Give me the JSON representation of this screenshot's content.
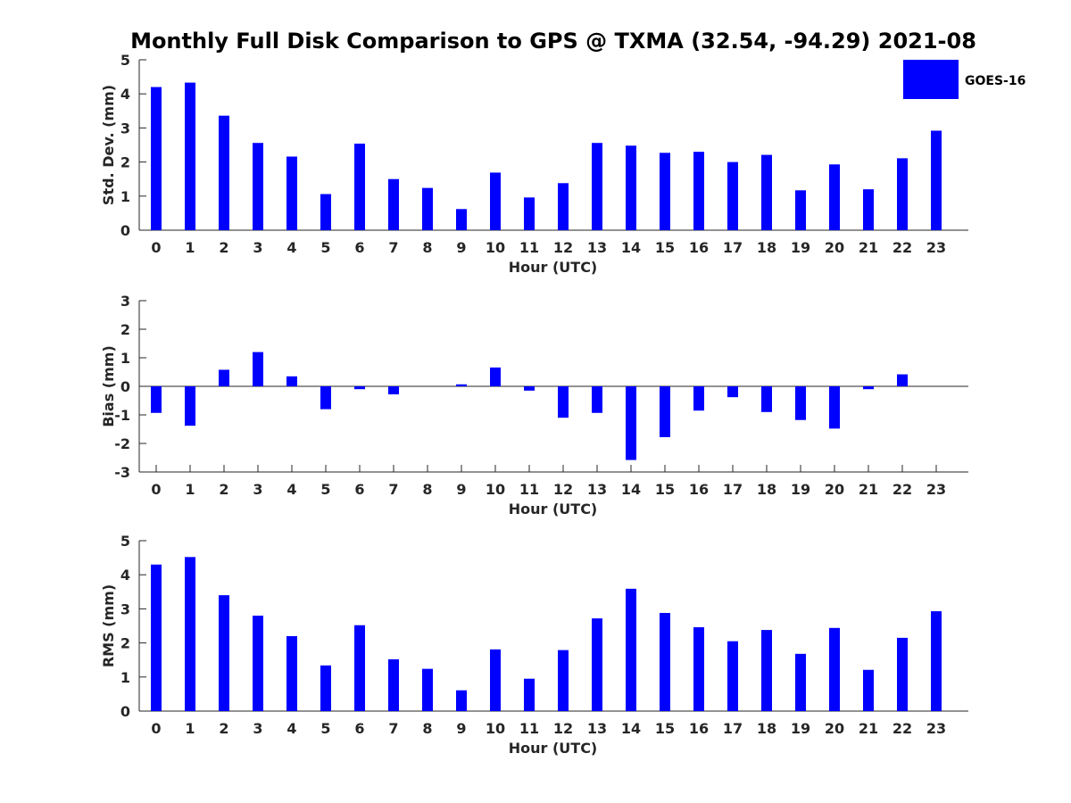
{
  "title": "Monthly Full Disk Comparison to GPS @ TXMA (32.54, -94.29) 2021-08",
  "legend": {
    "label": "GOES-16",
    "color": "#0000FF",
    "placement": "top-right"
  },
  "chart_data": [
    {
      "type": "bar",
      "ylabel": "Std. Dev. (mm)",
      "xlabel": "Hour (UTC)",
      "ylim": [
        0,
        5
      ],
      "yticks": [
        0,
        1,
        2,
        3,
        4,
        5
      ],
      "categories": [
        "0",
        "1",
        "2",
        "3",
        "4",
        "5",
        "6",
        "7",
        "8",
        "9",
        "10",
        "11",
        "12",
        "13",
        "14",
        "15",
        "16",
        "17",
        "18",
        "19",
        "20",
        "21",
        "22",
        "23"
      ],
      "series": [
        {
          "name": "GOES-16",
          "color": "#0000FF",
          "values": [
            4.2,
            4.33,
            3.36,
            2.56,
            2.16,
            1.06,
            2.54,
            1.5,
            1.24,
            0.62,
            1.69,
            0.96,
            1.38,
            2.56,
            2.48,
            2.27,
            2.3,
            2.0,
            2.21,
            1.17,
            1.93,
            1.2,
            2.11,
            2.92
          ]
        }
      ],
      "grid": false
    },
    {
      "type": "bar",
      "ylabel": "Bias (mm)",
      "xlabel": "Hour (UTC)",
      "ylim": [
        -3,
        3
      ],
      "yticks": [
        -3,
        -2,
        -1,
        0,
        1,
        2,
        3
      ],
      "categories": [
        "0",
        "1",
        "2",
        "3",
        "4",
        "5",
        "6",
        "7",
        "8",
        "9",
        "10",
        "11",
        "12",
        "13",
        "14",
        "15",
        "16",
        "17",
        "18",
        "19",
        "20",
        "21",
        "22",
        "23"
      ],
      "series": [
        {
          "name": "GOES-16",
          "color": "#0000FF",
          "values": [
            -0.93,
            -1.38,
            0.58,
            1.2,
            0.35,
            -0.8,
            -0.1,
            -0.28,
            0.0,
            0.07,
            0.66,
            -0.15,
            -1.1,
            -0.93,
            -2.58,
            -1.78,
            -0.85,
            -0.38,
            -0.9,
            -1.18,
            -1.48,
            -0.1,
            0.42,
            0.0
          ]
        }
      ],
      "grid": false
    },
    {
      "type": "bar",
      "ylabel": "RMS (mm)",
      "xlabel": "Hour (UTC)",
      "ylim": [
        0,
        5
      ],
      "yticks": [
        0,
        1,
        2,
        3,
        4,
        5
      ],
      "categories": [
        "0",
        "1",
        "2",
        "3",
        "4",
        "5",
        "6",
        "7",
        "8",
        "9",
        "10",
        "11",
        "12",
        "13",
        "14",
        "15",
        "16",
        "17",
        "18",
        "19",
        "20",
        "21",
        "22",
        "23"
      ],
      "series": [
        {
          "name": "GOES-16",
          "color": "#0000FF",
          "values": [
            4.3,
            4.52,
            3.4,
            2.8,
            2.2,
            1.34,
            2.52,
            1.52,
            1.24,
            0.61,
            1.81,
            0.95,
            1.79,
            2.72,
            3.59,
            2.88,
            2.46,
            2.05,
            2.38,
            1.68,
            2.44,
            1.21,
            2.15,
            2.93
          ]
        }
      ],
      "grid": false
    }
  ]
}
